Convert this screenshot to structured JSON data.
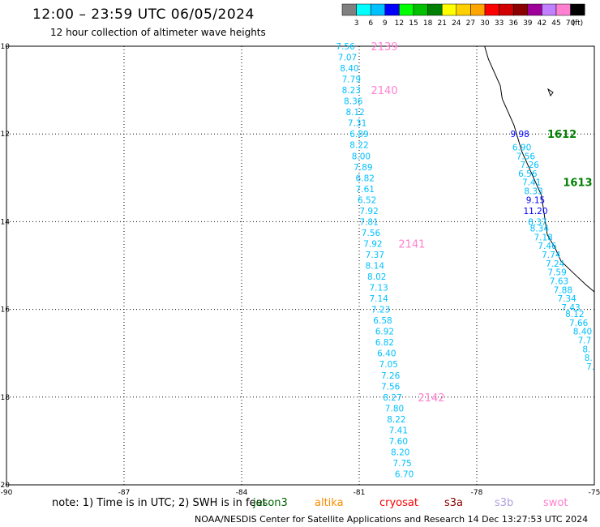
{
  "title": "12:00 – 23:59 UTC 06/05/2024",
  "subtitle": "12 hour collection of altimeter wave heights",
  "note": "note:  1) Time is in UTC; 2) SWH is in feet",
  "footer": "NOAA/NESDIS Center for Satellite Applications and Research    14 Dec 13:27:53 UTC 2024",
  "satellites": [
    {
      "name": "jason3",
      "color": "#006400"
    },
    {
      "name": "altika",
      "color": "#ff8c00"
    },
    {
      "name": "cryosat",
      "color": "#ff0000"
    },
    {
      "name": "s3a",
      "color": "#8b0000"
    },
    {
      "name": "s3b",
      "color": "#b0a0e0"
    },
    {
      "name": "swot",
      "color": "#ff80d0"
    }
  ],
  "color_scale": {
    "ticks": [
      "3",
      "6",
      "9",
      "12",
      "15",
      "18",
      "21",
      "24",
      "27",
      "30",
      "33",
      "36",
      "39",
      "42",
      "45",
      "70",
      "(ft)"
    ],
    "colors": [
      "#808080",
      "#00ffff",
      "#00c0ff",
      "#0000ff",
      "#00ff00",
      "#00c000",
      "#008000",
      "#ffff00",
      "#ffd000",
      "#ffa500",
      "#ff0000",
      "#d00000",
      "#8b0000",
      "#a0009a",
      "#c080ff",
      "#ff80d0",
      "#000000"
    ]
  },
  "chart_data": {
    "type": "scatter",
    "title": "12:00 – 23:59 UTC 06/05/2024",
    "subtitle": "12 hour collection of altimeter wave heights",
    "xlabel": "",
    "ylabel": "",
    "xlim": [
      -90,
      -75
    ],
    "ylim": [
      -20,
      -10
    ],
    "x_ticks": [
      -90,
      -87,
      -84,
      -81,
      -78,
      -75
    ],
    "y_ticks": [
      -10,
      -12,
      -14,
      -16,
      -18,
      -20
    ],
    "grid": true,
    "track_labels": [
      {
        "text": "2139",
        "lon": -80.7,
        "lat": -10.0,
        "color": "#ff80d0"
      },
      {
        "text": "2140",
        "lon": -80.7,
        "lat": -11.0,
        "color": "#ff80d0"
      },
      {
        "text": "2141",
        "lon": -80.0,
        "lat": -14.5,
        "color": "#ff80d0"
      },
      {
        "text": "2142",
        "lon": -79.5,
        "lat": -18.0,
        "color": "#ff80d0"
      },
      {
        "text": "1612",
        "lon": -76.2,
        "lat": -12.0,
        "color": "#008000"
      },
      {
        "text": "1613",
        "lon": -75.8,
        "lat": -13.1,
        "color": "#008000"
      }
    ],
    "series": [
      {
        "points": [
          {
            "lon": -81.35,
            "lat": -10.0,
            "v": "7.56",
            "c": "#00c0ff"
          },
          {
            "lon": -81.3,
            "lat": -10.25,
            "v": "7.07",
            "c": "#00c0ff"
          },
          {
            "lon": -81.25,
            "lat": -10.5,
            "v": "8.40",
            "c": "#00c0ff"
          },
          {
            "lon": -81.2,
            "lat": -10.75,
            "v": "7.79",
            "c": "#00c0ff"
          },
          {
            "lon": -81.2,
            "lat": -11.0,
            "v": "8.23",
            "c": "#00c0ff"
          },
          {
            "lon": -81.15,
            "lat": -11.25,
            "v": "8.36",
            "c": "#00c0ff"
          },
          {
            "lon": -81.1,
            "lat": -11.5,
            "v": "8.12",
            "c": "#00c0ff"
          },
          {
            "lon": -81.05,
            "lat": -11.75,
            "v": "7.31",
            "c": "#00c0ff"
          },
          {
            "lon": -81.0,
            "lat": -12.0,
            "v": "6.89",
            "c": "#00c0ff"
          },
          {
            "lon": -81.0,
            "lat": -12.25,
            "v": "8.22",
            "c": "#00c0ff"
          },
          {
            "lon": -80.95,
            "lat": -12.5,
            "v": "8.00",
            "c": "#00c0ff"
          },
          {
            "lon": -80.9,
            "lat": -12.75,
            "v": "7.89",
            "c": "#00c0ff"
          },
          {
            "lon": -80.85,
            "lat": -13.0,
            "v": "6.82",
            "c": "#00c0ff"
          },
          {
            "lon": -80.85,
            "lat": -13.25,
            "v": "7.61",
            "c": "#00c0ff"
          },
          {
            "lon": -80.8,
            "lat": -13.5,
            "v": "6.52",
            "c": "#00c0ff"
          },
          {
            "lon": -80.75,
            "lat": -13.75,
            "v": "7.92",
            "c": "#00c0ff"
          },
          {
            "lon": -80.75,
            "lat": -14.0,
            "v": "7.81",
            "c": "#00c0ff"
          },
          {
            "lon": -80.7,
            "lat": -14.25,
            "v": "7.56",
            "c": "#00c0ff"
          },
          {
            "lon": -80.65,
            "lat": -14.5,
            "v": "7.92",
            "c": "#00c0ff"
          },
          {
            "lon": -80.6,
            "lat": -14.75,
            "v": "7.37",
            "c": "#00c0ff"
          },
          {
            "lon": -80.6,
            "lat": -15.0,
            "v": "8.14",
            "c": "#00c0ff"
          },
          {
            "lon": -80.55,
            "lat": -15.25,
            "v": "8.02",
            "c": "#00c0ff"
          },
          {
            "lon": -80.5,
            "lat": -15.5,
            "v": "7.13",
            "c": "#00c0ff"
          },
          {
            "lon": -80.5,
            "lat": -15.75,
            "v": "7.14",
            "c": "#00c0ff"
          },
          {
            "lon": -80.45,
            "lat": -16.0,
            "v": "7.23",
            "c": "#00c0ff"
          },
          {
            "lon": -80.4,
            "lat": -16.25,
            "v": "6.58",
            "c": "#00c0ff"
          },
          {
            "lon": -80.35,
            "lat": -16.5,
            "v": "6.92",
            "c": "#00c0ff"
          },
          {
            "lon": -80.35,
            "lat": -16.75,
            "v": "6.82",
            "c": "#00c0ff"
          },
          {
            "lon": -80.3,
            "lat": -17.0,
            "v": "6.40",
            "c": "#00c0ff"
          },
          {
            "lon": -80.25,
            "lat": -17.25,
            "v": "7.05",
            "c": "#00c0ff"
          },
          {
            "lon": -80.2,
            "lat": -17.5,
            "v": "7.26",
            "c": "#00c0ff"
          },
          {
            "lon": -80.2,
            "lat": -17.75,
            "v": "7.56",
            "c": "#00c0ff"
          },
          {
            "lon": -80.15,
            "lat": -18.0,
            "v": "8.27",
            "c": "#00c0ff"
          },
          {
            "lon": -80.1,
            "lat": -18.25,
            "v": "7.80",
            "c": "#00c0ff"
          },
          {
            "lon": -80.05,
            "lat": -18.5,
            "v": "8.22",
            "c": "#00c0ff"
          },
          {
            "lon": -80.0,
            "lat": -18.75,
            "v": "7.41",
            "c": "#00c0ff"
          },
          {
            "lon": -80.0,
            "lat": -19.0,
            "v": "7.60",
            "c": "#00c0ff"
          },
          {
            "lon": -79.95,
            "lat": -19.25,
            "v": "8.20",
            "c": "#00c0ff"
          },
          {
            "lon": -79.9,
            "lat": -19.5,
            "v": "7.75",
            "c": "#00c0ff"
          },
          {
            "lon": -79.85,
            "lat": -19.75,
            "v": "6.70",
            "c": "#00c0ff"
          }
        ]
      },
      {
        "points": [
          {
            "lon": -76.9,
            "lat": -12.0,
            "v": "9.98",
            "c": "#0000ff"
          },
          {
            "lon": -76.85,
            "lat": -12.3,
            "v": "6.90",
            "c": "#00c0ff"
          },
          {
            "lon": -76.75,
            "lat": -12.5,
            "v": "7.56",
            "c": "#00c0ff"
          },
          {
            "lon": -76.65,
            "lat": -12.7,
            "v": "7.26",
            "c": "#00c0ff"
          },
          {
            "lon": -76.7,
            "lat": -12.9,
            "v": "6.56",
            "c": "#00c0ff"
          },
          {
            "lon": -76.6,
            "lat": -13.1,
            "v": "7.41",
            "c": "#00c0ff"
          },
          {
            "lon": -76.55,
            "lat": -13.3,
            "v": "8.33",
            "c": "#00c0ff"
          },
          {
            "lon": -76.5,
            "lat": -13.5,
            "v": "9.15",
            "c": "#0000ff"
          },
          {
            "lon": -76.5,
            "lat": -13.75,
            "v": "11.20",
            "c": "#0000ff"
          },
          {
            "lon": -76.45,
            "lat": -14.0,
            "v": "8.37",
            "c": "#00c0ff"
          },
          {
            "lon": -76.4,
            "lat": -14.15,
            "v": "8.34",
            "c": "#00c0ff"
          },
          {
            "lon": -76.3,
            "lat": -14.35,
            "v": "7.18",
            "c": "#00c0ff"
          },
          {
            "lon": -76.2,
            "lat": -14.55,
            "v": "7.46",
            "c": "#00c0ff"
          },
          {
            "lon": -76.1,
            "lat": -14.75,
            "v": "7.74",
            "c": "#00c0ff"
          },
          {
            "lon": -76.0,
            "lat": -14.95,
            "v": "7.24",
            "c": "#00c0ff"
          },
          {
            "lon": -75.95,
            "lat": -15.15,
            "v": "7.59",
            "c": "#00c0ff"
          },
          {
            "lon": -75.9,
            "lat": -15.35,
            "v": "7.63",
            "c": "#00c0ff"
          },
          {
            "lon": -75.8,
            "lat": -15.55,
            "v": "7.88",
            "c": "#00c0ff"
          },
          {
            "lon": -75.7,
            "lat": -15.75,
            "v": "7.34",
            "c": "#00c0ff"
          },
          {
            "lon": -75.6,
            "lat": -15.95,
            "v": "7.43",
            "c": "#00c0ff"
          },
          {
            "lon": -75.5,
            "lat": -16.1,
            "v": "8.12",
            "c": "#00c0ff"
          },
          {
            "lon": -75.4,
            "lat": -16.3,
            "v": "7.66",
            "c": "#00c0ff"
          },
          {
            "lon": -75.3,
            "lat": -16.5,
            "v": "8.40",
            "c": "#00c0ff"
          },
          {
            "lon": -75.25,
            "lat": -16.7,
            "v": "7.7",
            "c": "#00c0ff"
          },
          {
            "lon": -75.2,
            "lat": -16.9,
            "v": "8.",
            "c": "#00c0ff"
          },
          {
            "lon": -75.15,
            "lat": -17.1,
            "v": "8.",
            "c": "#00c0ff"
          },
          {
            "lon": -75.1,
            "lat": -17.3,
            "v": "7.",
            "c": "#00c0ff"
          }
        ]
      }
    ]
  }
}
